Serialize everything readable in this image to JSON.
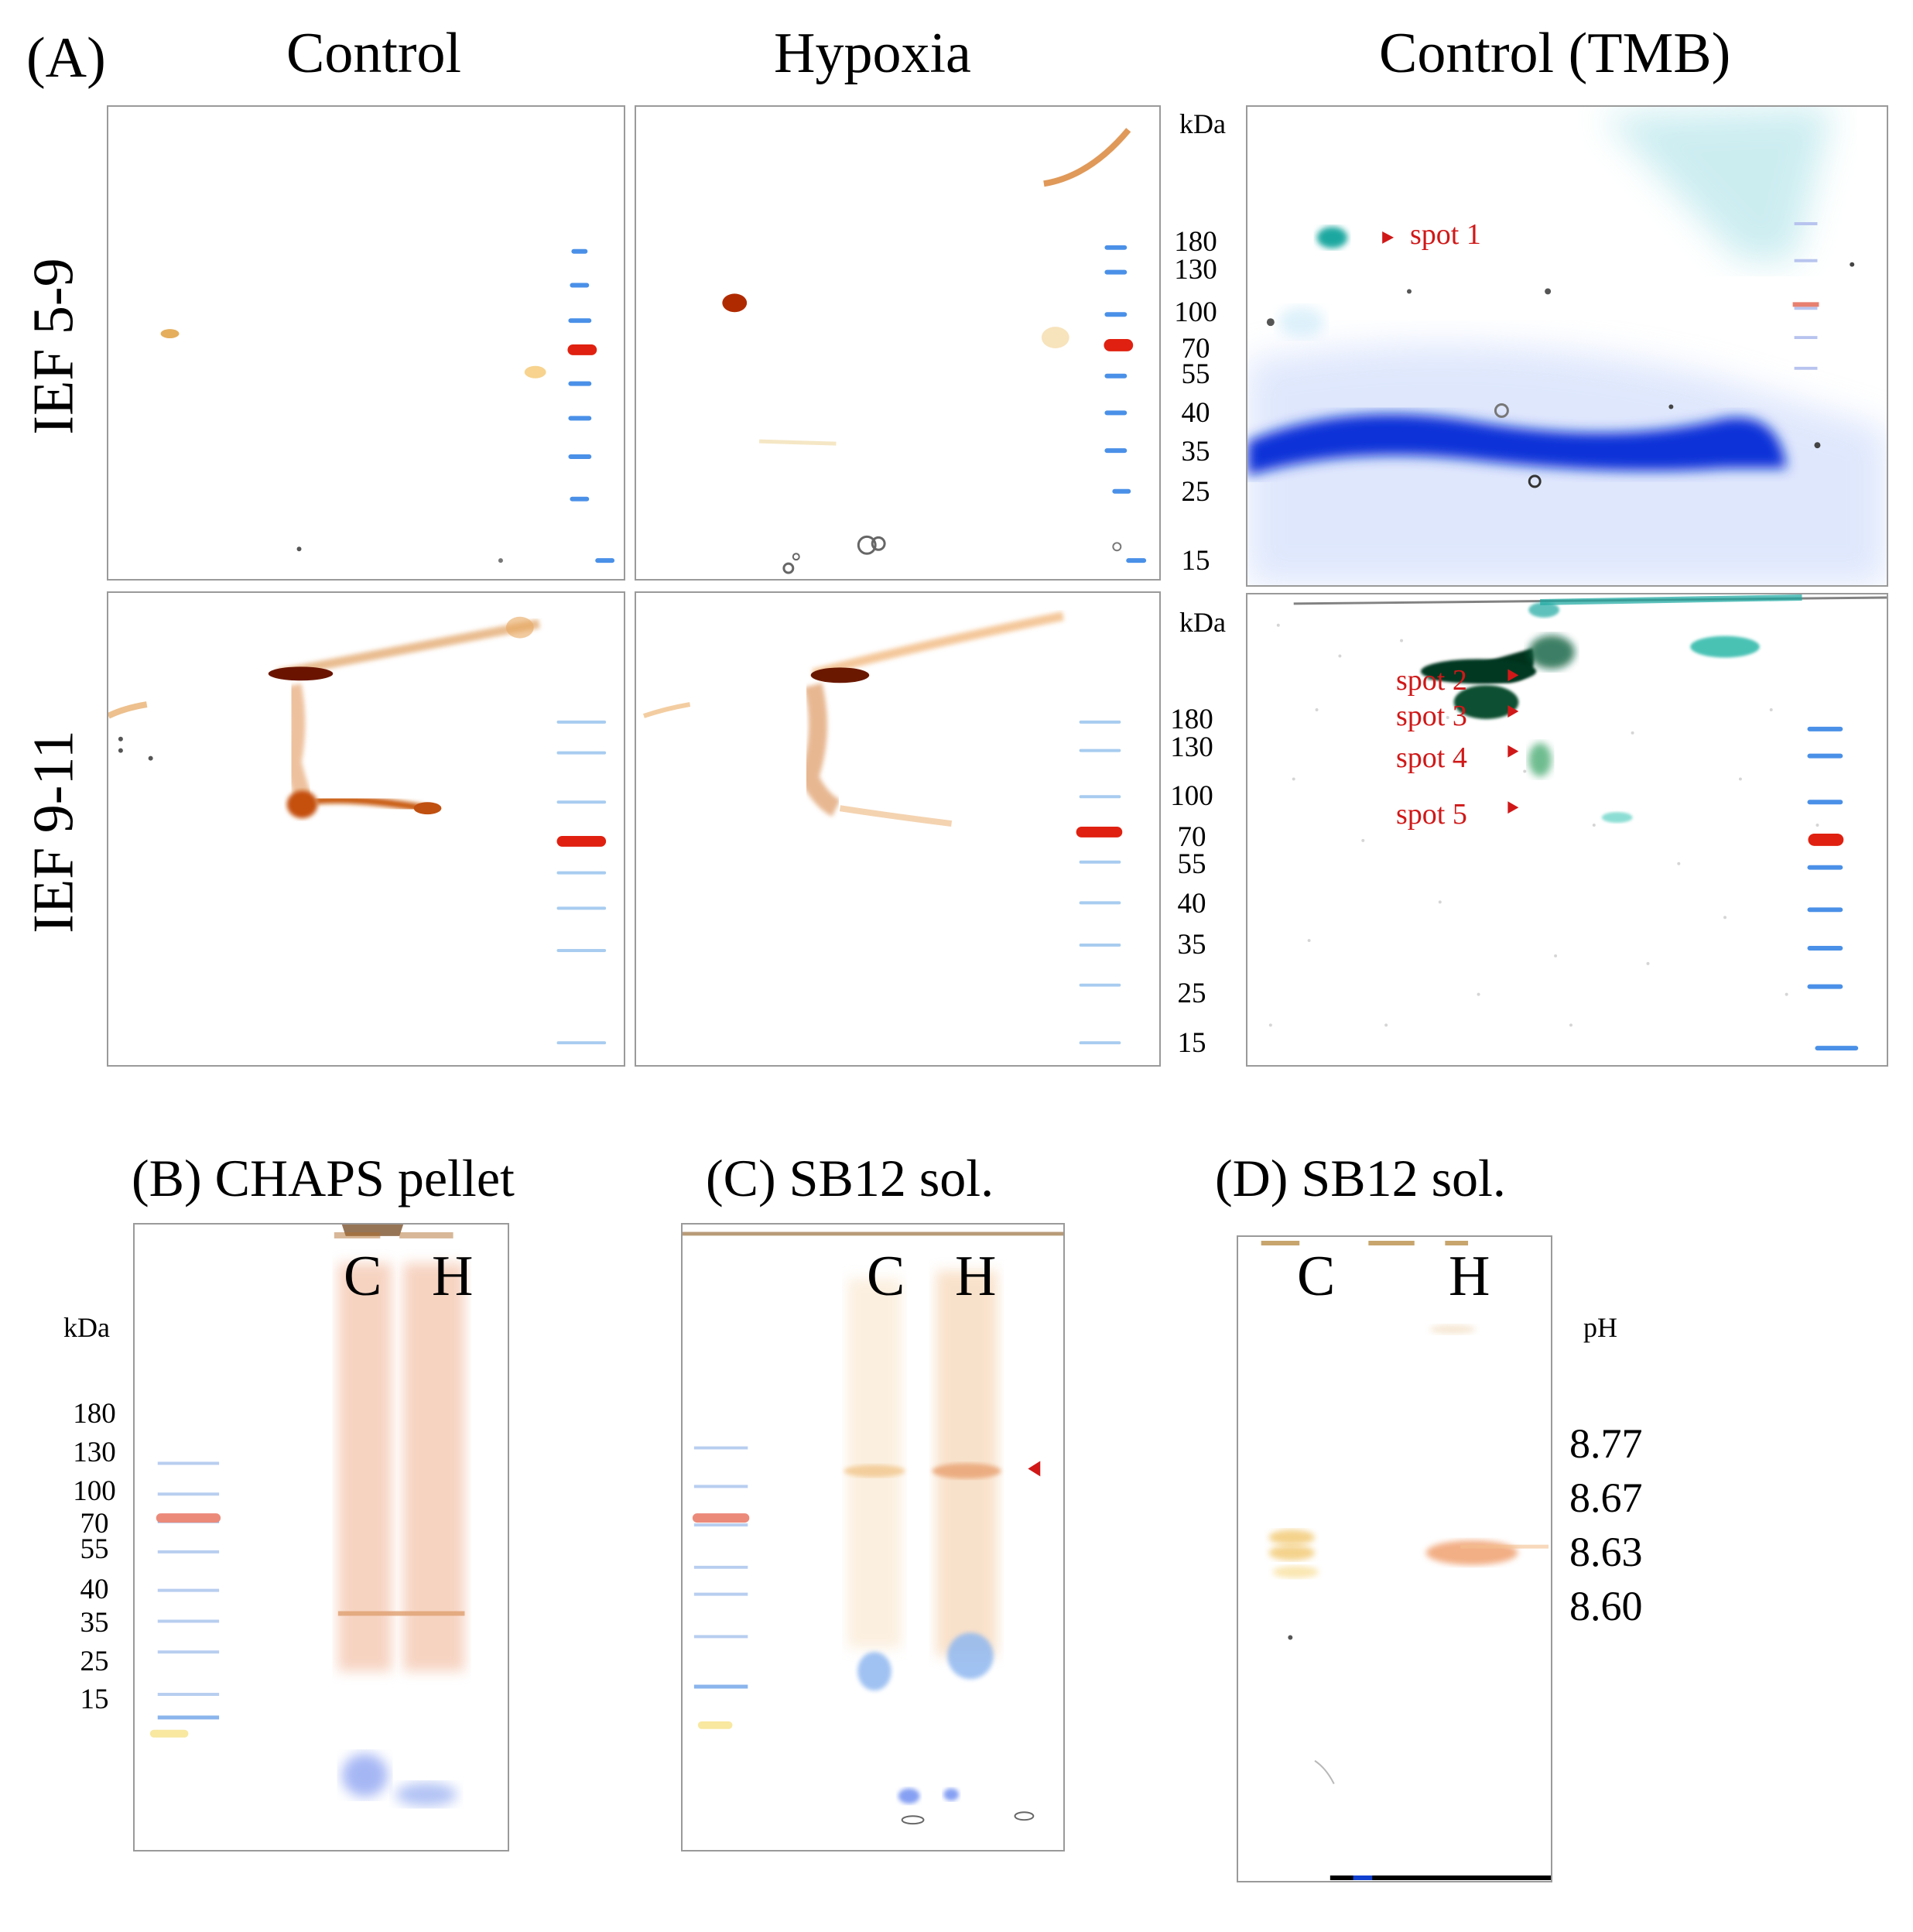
{
  "figure": {
    "panel_A": {
      "label": "(A)",
      "columns": [
        "Control",
        "Hypoxia",
        "Control (TMB)"
      ],
      "rows": [
        "IEF 5-9",
        "IEF 9-11"
      ],
      "kda_label": "kDa",
      "markers": [
        "180",
        "130",
        "100",
        "70",
        "55",
        "40",
        "35",
        "25",
        "15"
      ],
      "spots": [
        "spot 1",
        "spot 2",
        "spot 3",
        "spot 4",
        "spot 5"
      ]
    },
    "panel_B": {
      "title": "(B) CHAPS pellet",
      "lanes": [
        "C",
        "H"
      ],
      "kda_label": "kDa",
      "markers": [
        "180",
        "130",
        "100",
        "70",
        "55",
        "40",
        "35",
        "25",
        "15"
      ]
    },
    "panel_C": {
      "title": "(C) SB12 sol.",
      "lanes": [
        "C",
        "H"
      ]
    },
    "panel_D": {
      "title": "(D) SB12 sol.",
      "lanes": [
        "C",
        "H"
      ],
      "ph_label": "pH",
      "ph_values": [
        "8.77",
        "8.67",
        "8.63",
        "8.60"
      ]
    },
    "colors": {
      "annotation_red": "#d01818",
      "ladder_blue": "#4a90e8",
      "ladder_red": "#e02010",
      "stain_brown": "#b85a10",
      "tmb_blue": "#1030d8",
      "tmb_teal": "#1aa8a0"
    }
  }
}
